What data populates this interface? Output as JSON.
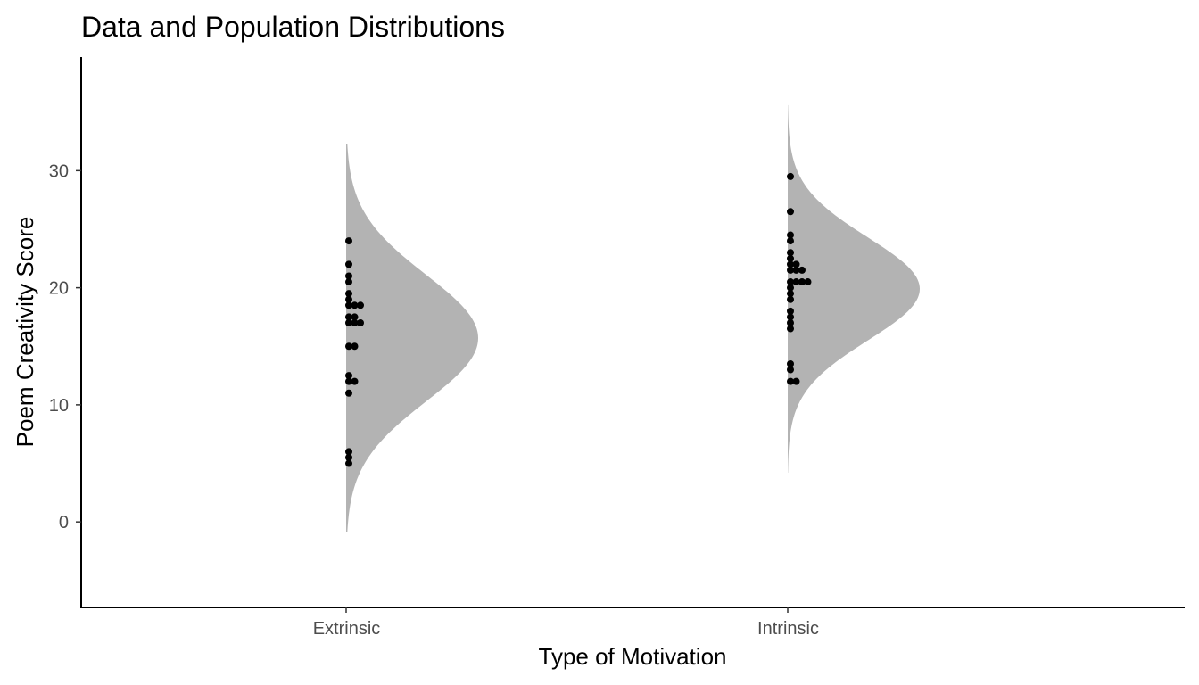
{
  "chart_data": {
    "type": "half-violin with dot plot",
    "title": "Data and Population Distributions",
    "xlabel": "Type of Motivation",
    "ylabel": "Poem Creativity Score",
    "categories": [
      "Extrinsic",
      "Intrinsic"
    ],
    "ylim": [
      -7.3,
      39.7
    ],
    "yticks": [
      0,
      10,
      20,
      30
    ],
    "grid": false,
    "legend": "none",
    "colors": {
      "density_fill": "#b3b3b3",
      "points": "#000000",
      "axis": "#000000",
      "tick_text": "#4d4d4d"
    },
    "distributions": [
      {
        "category": "Extrinsic",
        "mean": 15.7,
        "sd": 5.4,
        "range": [
          -0.9,
          32.3
        ]
      },
      {
        "category": "Intrinsic",
        "mean": 19.9,
        "sd": 4.4,
        "range": [
          4.2,
          35.6
        ]
      }
    ],
    "series": [
      {
        "category": "Extrinsic",
        "values": [
          24,
          22,
          21,
          20.5,
          19.5,
          19,
          18.5,
          18.5,
          18.5,
          17.5,
          17.5,
          17,
          17,
          17,
          15,
          15,
          12.5,
          12,
          12,
          11,
          6,
          5.5,
          5
        ]
      },
      {
        "category": "Intrinsic",
        "values": [
          29.5,
          26.5,
          24.5,
          24,
          23,
          22.5,
          22,
          22,
          21.5,
          21.5,
          21.5,
          20.5,
          20.5,
          20.5,
          20.5,
          20,
          19.5,
          19,
          18,
          17.5,
          17,
          16.5,
          13.5,
          13,
          12,
          12
        ]
      }
    ]
  }
}
